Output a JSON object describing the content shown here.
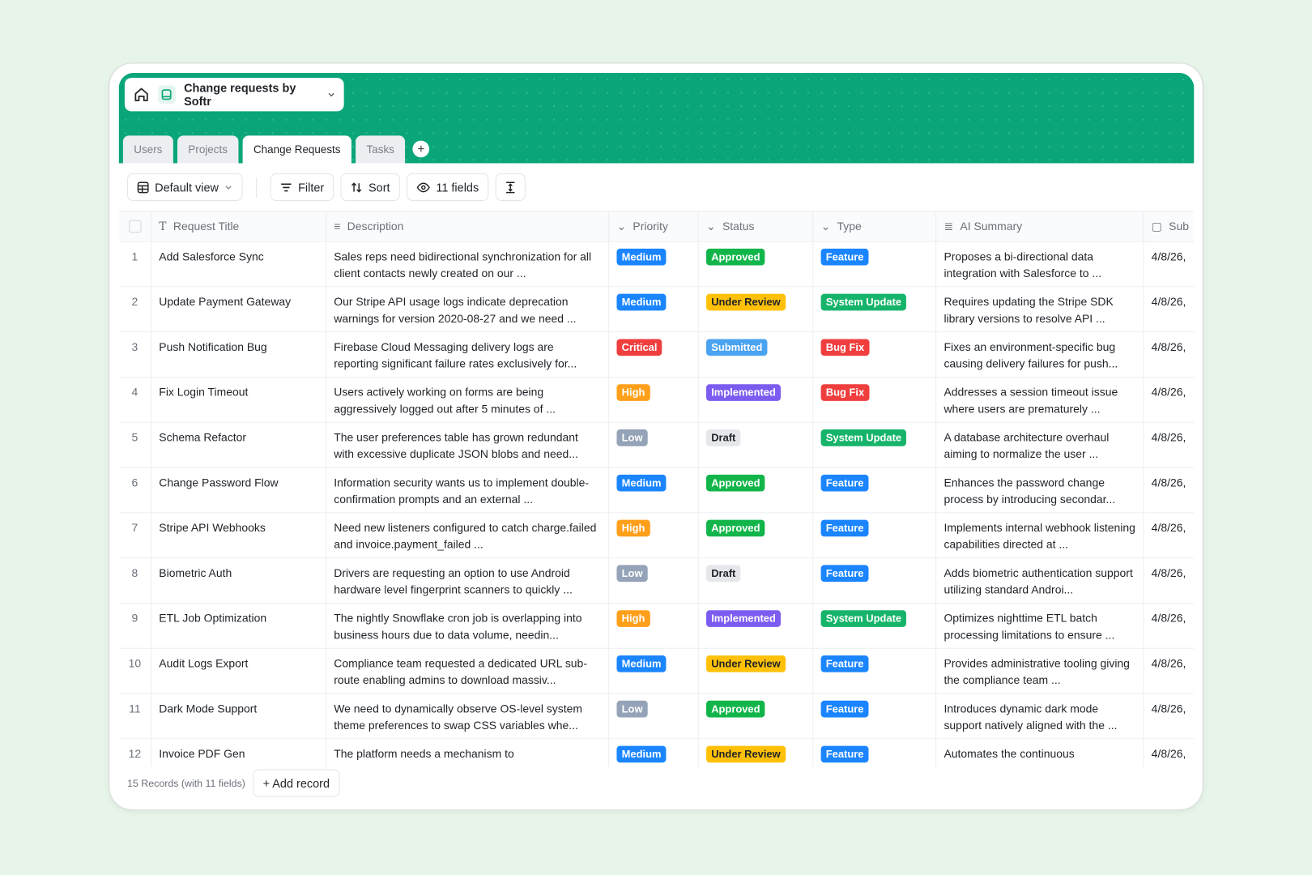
{
  "header": {
    "app_title": "Change requests by Softr",
    "accent": "#0aa679"
  },
  "tabs": [
    {
      "label": "Users"
    },
    {
      "label": "Projects"
    },
    {
      "label": "Change Requests",
      "active": true
    },
    {
      "label": "Tasks"
    }
  ],
  "toolbar": {
    "view": "Default view",
    "filter": "Filter",
    "sort": "Sort",
    "fields": "11 fields"
  },
  "columns": [
    "Request Title",
    "Description",
    "Priority",
    "Status",
    "Type",
    "AI Summary",
    "Sub"
  ],
  "badge_colors": {
    "Medium": "#1a85ff",
    "High": "#ff9f1a",
    "Low": "#94a3b8",
    "Critical": "#f03e3e",
    "Approved": "#12b54a",
    "Under Review": "#ffc107",
    "Submitted": "#4aa3f0",
    "Implemented": "#7c5cf0",
    "Draft": "#e5e7eb",
    "Feature": "#1a85ff",
    "System Update": "#16b46a",
    "Bug Fix": "#f03e3e"
  },
  "rows": [
    {
      "n": "1",
      "title": "Add Salesforce Sync",
      "desc": "Sales reps need bidirectional synchronization for all client contacts newly created on our ...",
      "priority": "Medium",
      "status": "Approved",
      "type": "Feature",
      "summary": "Proposes a bi-directional data integration with Salesforce to ...",
      "date": "4/8/26,"
    },
    {
      "n": "2",
      "title": "Update Payment Gateway",
      "desc": "Our Stripe API usage logs indicate deprecation warnings for version 2020-08-27 and we need ...",
      "priority": "Medium",
      "status": "Under Review",
      "type": "System Update",
      "summary": "Requires updating the Stripe SDK library versions to resolve API ...",
      "date": "4/8/26,"
    },
    {
      "n": "3",
      "title": "Push Notification Bug",
      "desc": "Firebase Cloud Messaging delivery logs are reporting significant failure rates exclusively for...",
      "priority": "Critical",
      "status": "Submitted",
      "type": "Bug Fix",
      "summary": "Fixes an environment-specific bug causing delivery failures for push...",
      "date": "4/8/26,"
    },
    {
      "n": "4",
      "title": "Fix Login Timeout",
      "desc": "Users actively working on forms are being aggressively logged out after 5 minutes of ...",
      "priority": "High",
      "status": "Implemented",
      "type": "Bug Fix",
      "summary": "Addresses a session timeout issue where users are prematurely ...",
      "date": "4/8/26,"
    },
    {
      "n": "5",
      "title": "Schema Refactor",
      "desc": "The user preferences table has grown redundant with excessive duplicate JSON blobs and need...",
      "priority": "Low",
      "status": "Draft",
      "type": "System Update",
      "summary": "A database architecture overhaul aiming to normalize the user ...",
      "date": "4/8/26,"
    },
    {
      "n": "6",
      "title": "Change Password Flow",
      "desc": "Information security wants us to implement double-confirmation prompts and an external ...",
      "priority": "Medium",
      "status": "Approved",
      "type": "Feature",
      "summary": "Enhances the password change process by introducing secondar...",
      "date": "4/8/26,"
    },
    {
      "n": "7",
      "title": "Stripe API Webhooks",
      "desc": "Need new listeners configured to catch charge.failed and invoice.payment_failed ...",
      "priority": "High",
      "status": "Approved",
      "type": "Feature",
      "summary": "Implements internal webhook listening capabilities directed at ...",
      "date": "4/8/26,"
    },
    {
      "n": "8",
      "title": "Biometric Auth",
      "desc": "Drivers are requesting an option to use Android hardware level fingerprint scanners to quickly ...",
      "priority": "Low",
      "status": "Draft",
      "type": "Feature",
      "summary": "Adds biometric authentication support utilizing standard Androi...",
      "date": "4/8/26,"
    },
    {
      "n": "9",
      "title": "ETL Job Optimization",
      "desc": "The nightly Snowflake cron job is overlapping into business hours due to data volume, needin...",
      "priority": "High",
      "status": "Implemented",
      "type": "System Update",
      "summary": "Optimizes nighttime ETL batch processing limitations to ensure ...",
      "date": "4/8/26,"
    },
    {
      "n": "10",
      "title": "Audit Logs Export",
      "desc": "Compliance team requested a dedicated URL sub-route enabling admins to download massiv...",
      "priority": "Medium",
      "status": "Under Review",
      "type": "Feature",
      "summary": "Provides administrative tooling giving the compliance team ...",
      "date": "4/8/26,"
    },
    {
      "n": "11",
      "title": "Dark Mode Support",
      "desc": "We need to dynamically observe OS-level system theme preferences to swap CSS variables whe...",
      "priority": "Low",
      "status": "Approved",
      "type": "Feature",
      "summary": "Introduces dynamic dark mode support natively aligned with the ...",
      "date": "4/8/26,"
    },
    {
      "n": "12",
      "title": "Invoice PDF Gen",
      "desc": "The platform needs a mechanism to",
      "priority": "Medium",
      "status": "Under Review",
      "type": "Feature",
      "summary": "Automates the continuous",
      "date": "4/8/26,"
    }
  ],
  "footer": {
    "records": "15 Records (with 11 fields)",
    "add": "+ Add record"
  }
}
